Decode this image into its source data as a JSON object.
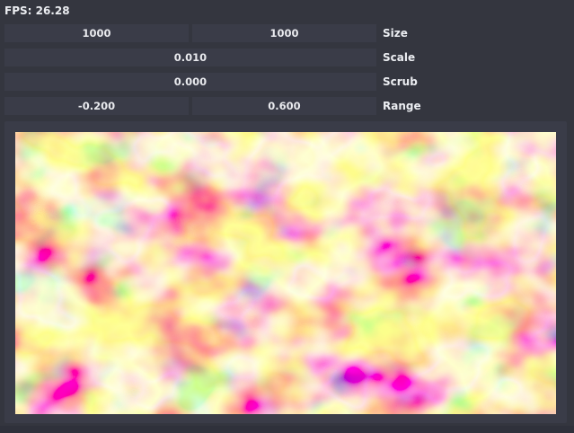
{
  "fps": {
    "text": "FPS: 26.28"
  },
  "controls": {
    "size": {
      "label": "Size",
      "value_a": "1000",
      "value_b": "1000"
    },
    "scale": {
      "label": "Scale",
      "value": "0.010"
    },
    "scrub": {
      "label": "Scrub",
      "value": "0.000"
    },
    "range": {
      "label": "Range",
      "value_a": "-0.200",
      "value_b": "0.600"
    }
  },
  "noise_view": {
    "colormap": [
      "#9e0142",
      "#d53e4f",
      "#f46d43",
      "#fdae61",
      "#fee08b",
      "#ffffbf",
      "#e6f598",
      "#abdda4",
      "#66c2a5",
      "#3288bd",
      "#5e4fa2"
    ]
  }
}
